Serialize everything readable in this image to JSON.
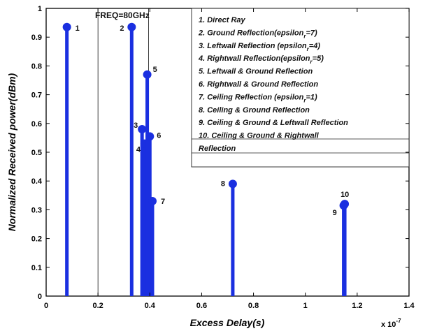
{
  "chart_data": {
    "type": "stem",
    "xlabel": "Excess Delay(s)",
    "ylabel": "Normalized Received power(dBm)",
    "x_multiplier": {
      "base": "x 10",
      "exponent": "-7"
    },
    "xlim": [
      0,
      1.4
    ],
    "ylim": [
      0,
      1
    ],
    "x_ticks": [
      {
        "value": 0,
        "label": "0"
      },
      {
        "value": 0.2,
        "label": "0.2"
      },
      {
        "value": 0.4,
        "label": "0.4"
      },
      {
        "value": 0.6,
        "label": "0.6"
      },
      {
        "value": 0.8,
        "label": "0.8"
      },
      {
        "value": 1.0,
        "label": "1"
      },
      {
        "value": 1.2,
        "label": "1.2"
      },
      {
        "value": 1.4,
        "label": "1.4"
      }
    ],
    "y_ticks": [
      {
        "value": 0,
        "label": "0"
      },
      {
        "value": 0.1,
        "label": "0.1"
      },
      {
        "value": 0.2,
        "label": "0.2"
      },
      {
        "value": 0.3,
        "label": "0.3"
      },
      {
        "value": 0.4,
        "label": "0.4"
      },
      {
        "value": 0.5,
        "label": "0.5"
      },
      {
        "value": 0.6,
        "label": "0.6"
      },
      {
        "value": 0.7,
        "label": "0.7"
      },
      {
        "value": 0.8,
        "label": "0.8"
      },
      {
        "value": 0.9,
        "label": "0.9"
      },
      {
        "value": 1.0,
        "label": "1"
      }
    ],
    "annotation": "FREQ=80GHz",
    "stem_color": "#1a2fe0",
    "points": [
      {
        "label": "1",
        "x": 0.08,
        "y": 0.935
      },
      {
        "label": "2",
        "x": 0.33,
        "y": 0.935
      },
      {
        "label": "3",
        "x": 0.37,
        "y": 0.58
      },
      {
        "label": "4",
        "x": 0.38,
        "y": 0.53
      },
      {
        "label": "5",
        "x": 0.39,
        "y": 0.77
      },
      {
        "label": "6",
        "x": 0.4,
        "y": 0.555
      },
      {
        "label": "7",
        "x": 0.41,
        "y": 0.33
      },
      {
        "label": "8",
        "x": 0.72,
        "y": 0.39
      },
      {
        "label": "9",
        "x": 1.148,
        "y": 0.315
      },
      {
        "label": "10",
        "x": 1.152,
        "y": 0.32
      }
    ],
    "legend": {
      "entries": [
        {
          "lines": [
            {
              "text": "1. Direct Ray"
            }
          ]
        },
        {
          "lines": [
            {
              "text": "2. Ground Reflection(epsilon",
              "sub": "r",
              "after": "=7)"
            }
          ]
        },
        {
          "lines": [
            {
              "text": "3. Leftwall Reflection (epsilon",
              "sub": "r",
              "after": "=4)"
            }
          ]
        },
        {
          "lines": [
            {
              "text": "4. Rightwall Reflection(epsilon",
              "sub": "r",
              "after": "=5)"
            }
          ]
        },
        {
          "lines": [
            {
              "text": "5. Leftwall & Ground Reflection"
            }
          ]
        },
        {
          "lines": [
            {
              "text": "6. Rightwall & Ground Reflection"
            }
          ]
        },
        {
          "lines": [
            {
              "text": "7. Ceiling Reflection (epsilon",
              "sub": "r",
              "after": "=1)"
            }
          ]
        },
        {
          "lines": [
            {
              "text": "8. Ceiling & Ground Reflection"
            }
          ]
        },
        {
          "lines": [
            {
              "text": "9. Ceiling & Ground  & Leftwall Reflection"
            }
          ]
        },
        {
          "lines": [
            {
              "text": "10. Ceiling & Ground & Rightwall"
            },
            {
              "text": "Reflection"
            }
          ]
        }
      ]
    }
  }
}
